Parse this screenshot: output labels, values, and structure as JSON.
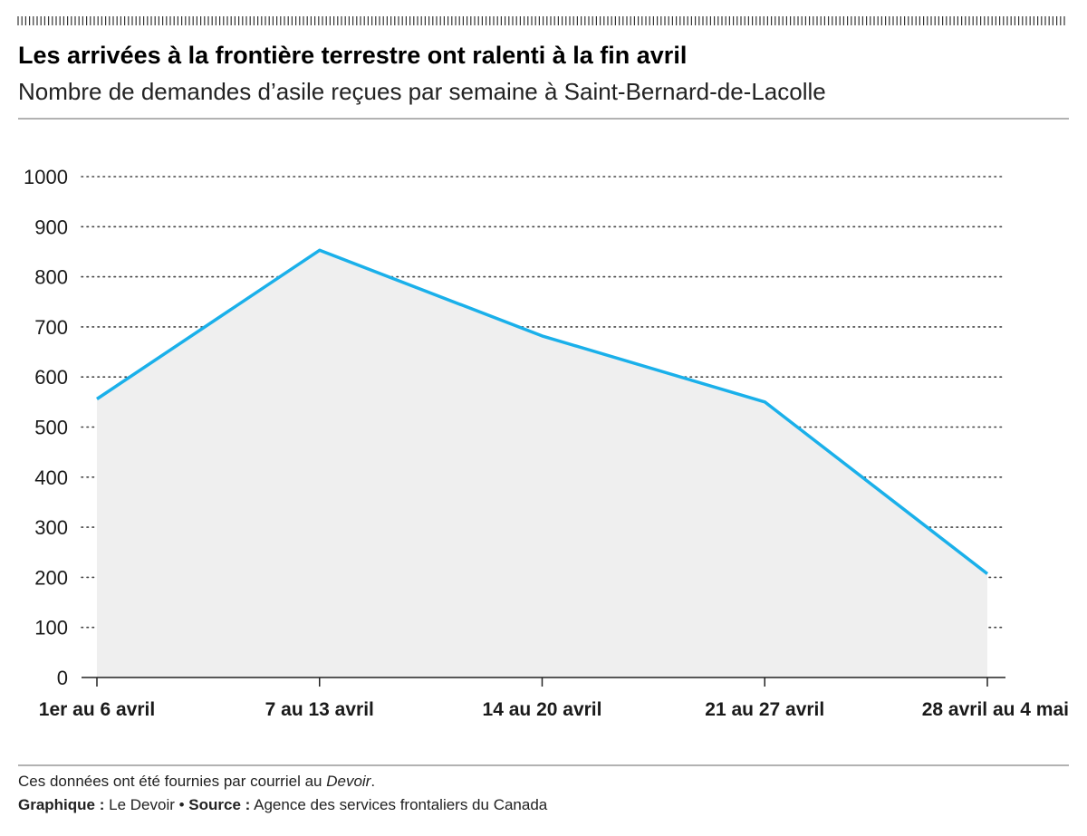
{
  "header": {
    "title": "Les arrivées à la frontière terrestre ont ralenti à la fin avril",
    "subtitle": "Nombre de demandes d’asile reçues par semaine à Saint-Bernard-de-Lacolle"
  },
  "footer": {
    "note_prefix": "Ces données ont été fournies par courriel au ",
    "note_italic": "Devoir",
    "note_suffix": ".",
    "graphic_label": "Graphique :",
    "graphic_value": " Le Devoir • ",
    "source_label": "Source :",
    "source_value": " Agence des services frontaliers du Canada"
  },
  "colors": {
    "line": "#1ab0ea",
    "area": "#efefef",
    "grid": "#444444",
    "rule": "#999999"
  },
  "chart_data": {
    "type": "area",
    "categories": [
      "1er au 6 avril",
      "7 au 13 avril",
      "14 au 20 avril",
      "21 au 27 avril",
      "28 avril au 4 mai"
    ],
    "series": [
      {
        "values": [
          556,
          853,
          682,
          550,
          207
        ]
      }
    ],
    "ylim": [
      0,
      1000
    ],
    "yticks": [
      0,
      100,
      200,
      300,
      400,
      500,
      600,
      700,
      800,
      900,
      1000
    ],
    "grid": true,
    "grid_style": "dotted",
    "legend": "none"
  }
}
